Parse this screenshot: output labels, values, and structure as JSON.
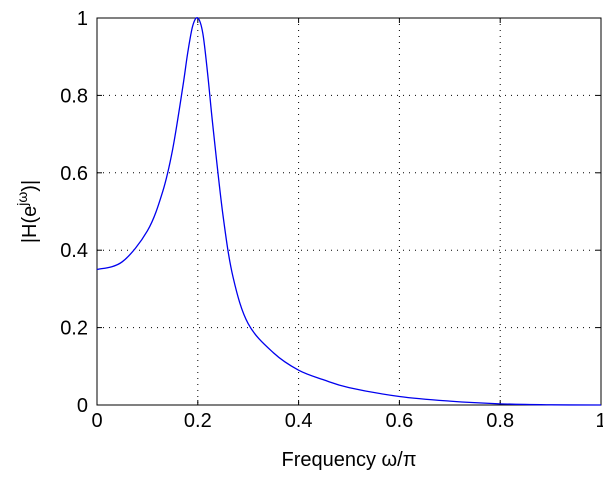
{
  "chart_data": {
    "type": "line",
    "xlabel": "Frequency ω/π",
    "ylabel": "|H(e^{jω})|",
    "xlim": [
      0,
      1
    ],
    "ylim": [
      0,
      1
    ],
    "xticks": [
      "0",
      "0.2",
      "0.4",
      "0.6",
      "0.8",
      "1"
    ],
    "yticks": [
      "0",
      "0.2",
      "0.4",
      "0.6",
      "0.8",
      "1"
    ],
    "grid": true,
    "series": [
      {
        "color": "#0000ee",
        "x": [
          0,
          0.05,
          0.1,
          0.13,
          0.15,
          0.17,
          0.18,
          0.19,
          0.2,
          0.21,
          0.22,
          0.23,
          0.25,
          0.27,
          0.3,
          0.35,
          0.4,
          0.45,
          0.5,
          0.6,
          0.7,
          0.8,
          0.9,
          1.0
        ],
        "y": [
          0.35,
          0.37,
          0.45,
          0.55,
          0.66,
          0.82,
          0.91,
          0.98,
          1.0,
          0.96,
          0.85,
          0.72,
          0.49,
          0.33,
          0.21,
          0.135,
          0.09,
          0.065,
          0.045,
          0.022,
          0.01,
          0.003,
          0.0005,
          0.0
        ]
      }
    ]
  }
}
